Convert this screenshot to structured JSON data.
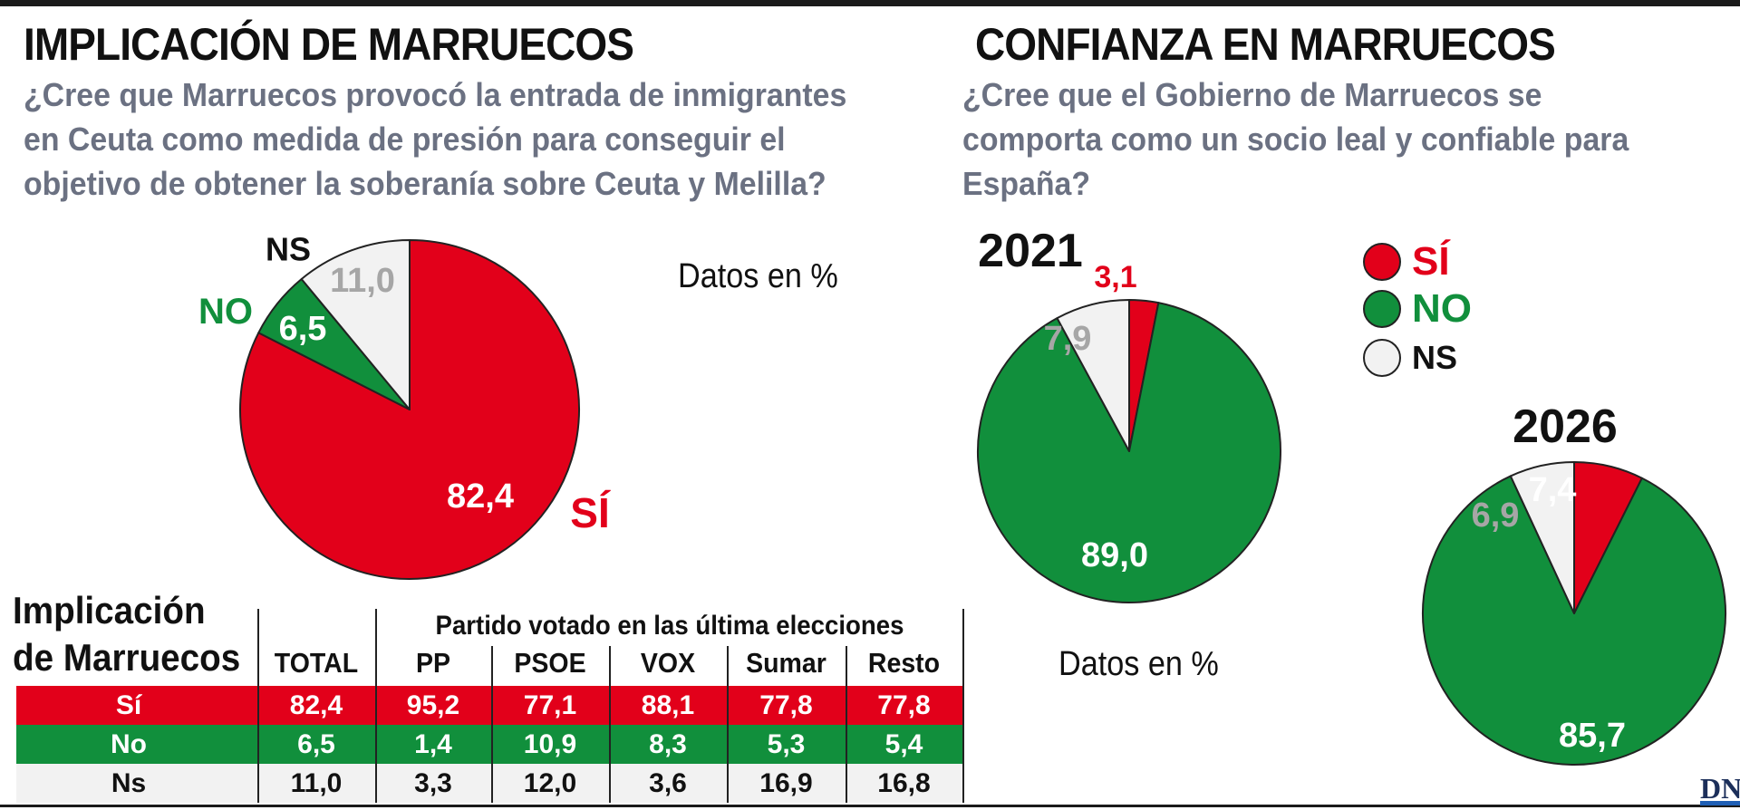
{
  "colors": {
    "si": "#e2001a",
    "no": "#118f3c",
    "ns": "#f2f2f2",
    "ns_label": "#a6a6a6",
    "question": "#6b7182"
  },
  "left": {
    "title": "IMPLICACIÓN DE MARRUECOS",
    "question": [
      "¿Cree que Marruecos provocó la entrada de inmigrantes",
      "en Ceuta como medida de presión para conseguir el",
      "objetivo de obtener la soberanía sobre Ceuta y Melilla?"
    ],
    "datos": "Datos en %"
  },
  "right": {
    "title": "CONFIANZA EN MARRUECOS",
    "question": [
      "¿Cree que el Gobierno de Marruecos se",
      "comporta como un socio leal y confiable para",
      "España?"
    ],
    "datos": "Datos en %",
    "legend": [
      "SÍ",
      "NO",
      "NS"
    ]
  },
  "chart_data": [
    {
      "type": "pie",
      "title": "",
      "categories": [
        "SÍ",
        "NO",
        "NS"
      ],
      "values": [
        82.4,
        6.5,
        11.0
      ],
      "value_labels": [
        "82,4",
        "6,5",
        "11,0"
      ],
      "category_labels": [
        "SÍ",
        "NO",
        "NS"
      ]
    },
    {
      "type": "pie",
      "title": "2021",
      "categories": [
        "SÍ",
        "NO",
        "NS"
      ],
      "values": [
        3.1,
        89.0,
        7.9
      ],
      "value_labels": [
        "3,1",
        "89,0",
        "7,9"
      ]
    },
    {
      "type": "pie",
      "title": "2026",
      "categories": [
        "SÍ",
        "NO",
        "NS"
      ],
      "values": [
        7.4,
        85.7,
        6.9
      ],
      "value_labels": [
        "7,4",
        "85,7",
        "6,9"
      ]
    },
    {
      "type": "table",
      "title": [
        "Implicación",
        "de Marruecos"
      ],
      "group_header": "Partido votado en las última elecciones",
      "columns": [
        "TOTAL",
        "PP",
        "PSOE",
        "VOX",
        "Sumar",
        "Resto"
      ],
      "rows": [
        {
          "label": "Sí",
          "values": [
            "82,4",
            "95,2",
            "77,1",
            "88,1",
            "77,8",
            "77,8"
          ]
        },
        {
          "label": "No",
          "values": [
            "6,5",
            "1,4",
            "10,9",
            "8,3",
            "5,3",
            "5,4"
          ]
        },
        {
          "label": "Ns",
          "values": [
            "11,0",
            "3,3",
            "12,0",
            "3,6",
            "16,9",
            "16,8"
          ]
        }
      ]
    }
  ],
  "logo": "DN"
}
